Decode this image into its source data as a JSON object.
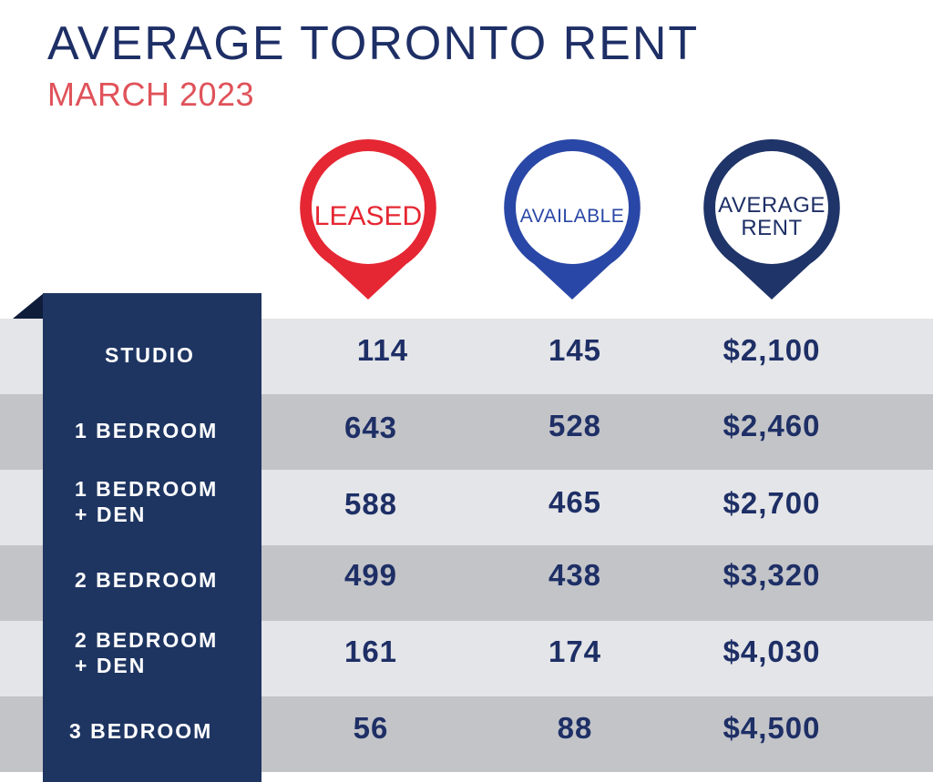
{
  "chart_data": {
    "type": "table",
    "title": "AVERAGE TORONTO RENT",
    "subtitle": "MARCH 2023",
    "columns": [
      "LEASED",
      "AVAILABLE",
      "AVERAGE\nRENT"
    ],
    "rows": [
      {
        "label": "STUDIO",
        "leased": "114",
        "available": "145",
        "rent": "$2,100"
      },
      {
        "label": "1 BEDROOM",
        "leased": "643",
        "available": "528",
        "rent": "$2,460"
      },
      {
        "label": "1 BEDROOM\n+ DEN",
        "leased": "588",
        "available": "465",
        "rent": "$2,700"
      },
      {
        "label": "2 BEDROOM",
        "leased": "499",
        "available": "438",
        "rent": "$3,320"
      },
      {
        "label": "2 BEDROOM\n+ DEN",
        "leased": "161",
        "available": "174",
        "rent": "$4,030"
      },
      {
        "label": "3 BEDROOM",
        "leased": "56",
        "available": "88",
        "rent": "$4,500"
      }
    ]
  },
  "colors": {
    "navy": "#1e3562",
    "title_navy": "#1e2f66",
    "leased_red": "#e52733",
    "subtitle_red": "#e0525a",
    "available_blue": "#2947a6",
    "average_navy": "#1f3468",
    "band_light": "#e4e5e8",
    "band_dark": "#c3c4c8"
  },
  "icons": {
    "leased": "map-pin-icon",
    "available": "map-pin-icon",
    "average_rent": "map-pin-icon"
  }
}
